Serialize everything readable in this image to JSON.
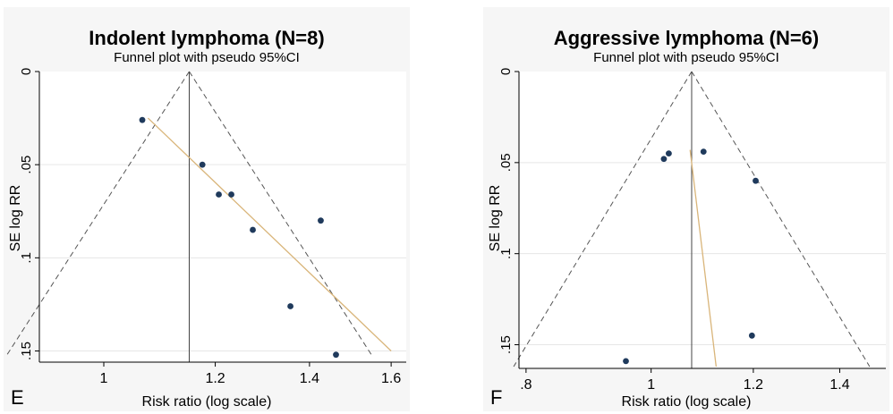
{
  "chart_data": [
    {
      "type": "scatter",
      "panel_label": "E",
      "title": "Indolent lymphoma (N=8)",
      "subtitle": "Funnel plot with pseudo 95%CI",
      "xlabel": "Risk ratio (log scale)",
      "ylabel": "SE log RR",
      "x_scale": "log",
      "x_ticks": [
        1,
        1.2,
        1.4,
        1.6
      ],
      "x_tick_labels": [
        "1",
        "1.2",
        "1.4",
        "1.6"
      ],
      "y_ticks": [
        0,
        0.05,
        0.1,
        0.15
      ],
      "y_tick_labels": [
        "0",
        ".05",
        ".1",
        ".15"
      ],
      "y_reversed": true,
      "grid": true,
      "pooled_estimate": 1.15,
      "points": [
        {
          "x": 1.065,
          "y": 0.026
        },
        {
          "x": 1.175,
          "y": 0.05
        },
        {
          "x": 1.207,
          "y": 0.066
        },
        {
          "x": 1.232,
          "y": 0.066
        },
        {
          "x": 1.276,
          "y": 0.085
        },
        {
          "x": 1.426,
          "y": 0.08
        },
        {
          "x": 1.357,
          "y": 0.126
        },
        {
          "x": 1.462,
          "y": 0.152
        }
      ],
      "regression_line": {
        "x": [
          1.075,
          1.6
        ],
        "y": [
          0.025,
          0.15
        ]
      },
      "colors": {
        "points": "#1f3a5c",
        "regression": "#d9b57a",
        "funnel": "#555555"
      }
    },
    {
      "type": "scatter",
      "panel_label": "F",
      "title": "Aggressive lymphoma (N=6)",
      "subtitle": "Funnel plot with pseudo 95%CI",
      "xlabel": "Risk ratio (log scale)",
      "ylabel": "SE log RR",
      "x_scale": "log",
      "x_ticks": [
        0.8,
        1,
        1.2,
        1.4
      ],
      "x_tick_labels": [
        ".8",
        "1",
        "1.2",
        "1.4"
      ],
      "y_ticks": [
        0,
        0.05,
        0.1,
        0.15
      ],
      "y_tick_labels": [
        "0",
        ".05",
        ".1",
        ".15"
      ],
      "y_reversed": true,
      "grid": true,
      "pooled_estimate": 1.075,
      "points": [
        {
          "x": 0.956,
          "y": 0.159
        },
        {
          "x": 1.023,
          "y": 0.048
        },
        {
          "x": 1.032,
          "y": 0.045
        },
        {
          "x": 1.098,
          "y": 0.044
        },
        {
          "x": 1.205,
          "y": 0.06
        },
        {
          "x": 1.197,
          "y": 0.145
        }
      ],
      "regression_line": {
        "x": [
          1.072,
          1.123
        ],
        "y": [
          0.043,
          0.162
        ]
      },
      "colors": {
        "points": "#1f3a5c",
        "regression": "#d9b57a",
        "funnel": "#555555"
      }
    }
  ]
}
